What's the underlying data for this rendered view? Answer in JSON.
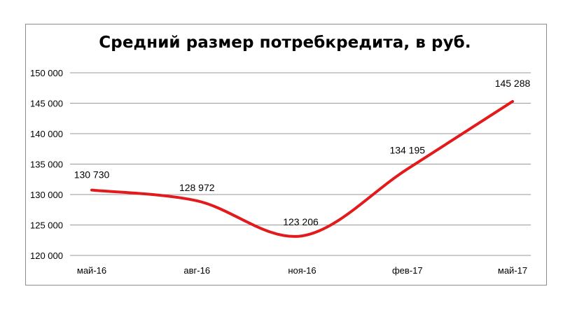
{
  "chart_data": {
    "type": "line",
    "title": "Средний размер потребкредита, в руб.",
    "xlabel": "",
    "ylabel": "",
    "categories": [
      "май-16",
      "авг-16",
      "ноя-16",
      "фев-17",
      "май-17"
    ],
    "y_tick_labels": [
      "120 000",
      "125 000",
      "130 000",
      "135 000",
      "140 000",
      "145 000",
      "150 000"
    ],
    "ylim": [
      120000,
      150000
    ],
    "grid": true,
    "legend": "none",
    "smooth": true,
    "series": [
      {
        "points": [
          {
            "x": 0,
            "y": 130730,
            "label": "130 730"
          },
          {
            "x": 1,
            "y": 128972,
            "label": "128 972"
          },
          {
            "x": 2,
            "y": 123206,
            "label": "123 206"
          },
          {
            "x": 3,
            "y": 134195,
            "label": "134 195"
          },
          {
            "x": 4,
            "y": 145288,
            "label": "145 288"
          }
        ]
      }
    ],
    "colors": {
      "line": "#e31a1c",
      "grid": "#9a9a9a"
    }
  }
}
